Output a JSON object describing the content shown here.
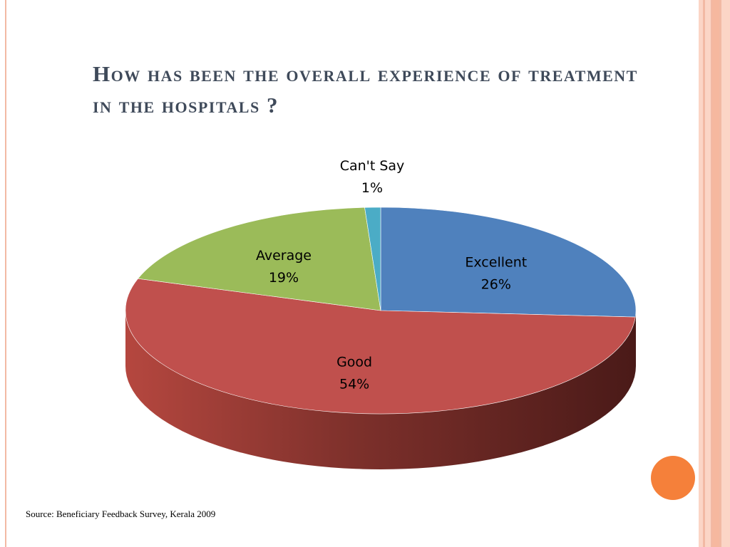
{
  "slide": {
    "title": "How has been the overall experience of treatment in the hospitals ?",
    "source": "Source: Beneficiary Feedback Survey, Kerala 2009"
  },
  "colors": {
    "title_text": "#3f4a5a",
    "border_line": "#f2b9a4",
    "band_light": "#fbd5c6",
    "band_mid": "#f6b89f",
    "orange_accent": "#f5803a",
    "label_text": "#000000"
  },
  "icons": {
    "decoration": "orange-circle"
  },
  "chart_data": {
    "type": "pie",
    "style": "3d",
    "title": "",
    "categories": [
      "Excellent",
      "Good",
      "Average",
      "Can't Say"
    ],
    "values": [
      26,
      54,
      19,
      1
    ],
    "labels": [
      "26%",
      "54%",
      "19%",
      "1%"
    ],
    "colors": [
      "#4f81bd",
      "#c0504d",
      "#9bbb59",
      "#4bacc6"
    ],
    "legend": "none",
    "data_labels": "category and percentage"
  }
}
